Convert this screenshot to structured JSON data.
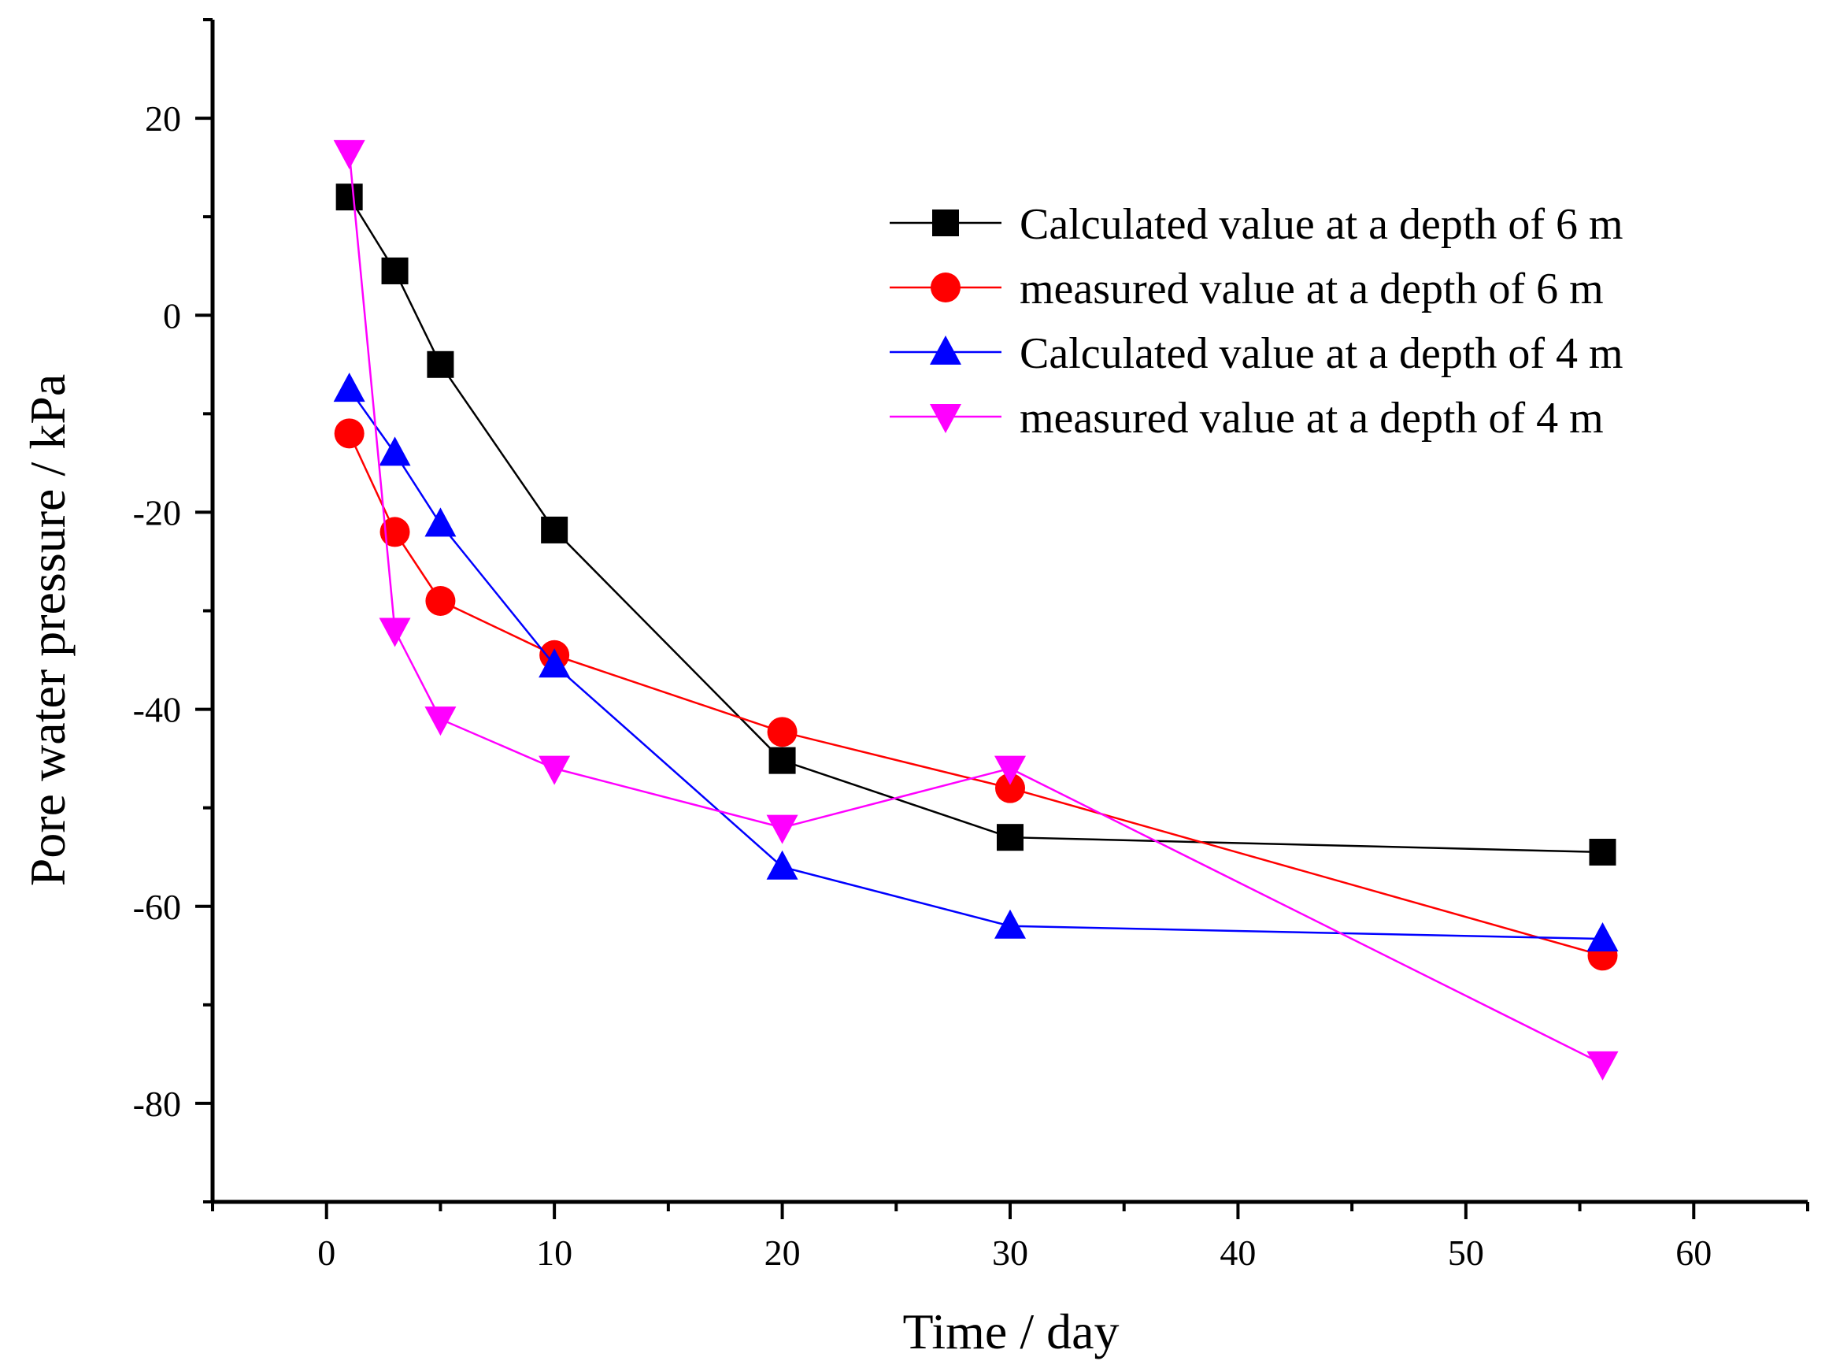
{
  "chart_data": {
    "type": "line",
    "title": "",
    "xlabel": "Time / day",
    "ylabel": "Pore water pressure / kPa",
    "xlim": [
      -5,
      65
    ],
    "ylim": [
      -90,
      30
    ],
    "x_ticks": [
      0,
      10,
      20,
      30,
      40,
      50,
      60
    ],
    "y_ticks": [
      -80,
      -60,
      -40,
      -20,
      0,
      20
    ],
    "x_tick_labels": [
      "0",
      "10",
      "20",
      "30",
      "40",
      "50",
      "60"
    ],
    "y_tick_labels": [
      "-80",
      "-60",
      "-40",
      "-20",
      "0",
      "20"
    ],
    "x": [
      1,
      3,
      5,
      10,
      20,
      30,
      56
    ],
    "grid": false,
    "legend_position": "top-right",
    "series": [
      {
        "name": "Calculated value at a depth of 6 m",
        "color": "#000000",
        "marker": "square",
        "values": [
          12,
          4.5,
          -5,
          -21.8,
          -45.2,
          -53,
          -54.5
        ]
      },
      {
        "name": "measured value at a depth of 6 m",
        "color": "#ff0000",
        "marker": "circle",
        "values": [
          -12,
          -22,
          -29,
          -34.5,
          -42.3,
          -48,
          -65
        ]
      },
      {
        "name": "Calculated value at a depth of 4 m",
        "color": "#0000ff",
        "marker": "triangle-up",
        "values": [
          -7.5,
          -14,
          -21.2,
          -35.5,
          -56,
          -62,
          -63.3
        ]
      },
      {
        "name": "measured value at a depth of 4 m",
        "color": "#ff00ff",
        "marker": "triangle-down",
        "values": [
          16.5,
          -32,
          -41,
          -46,
          -52,
          -46,
          -76
        ]
      }
    ]
  }
}
